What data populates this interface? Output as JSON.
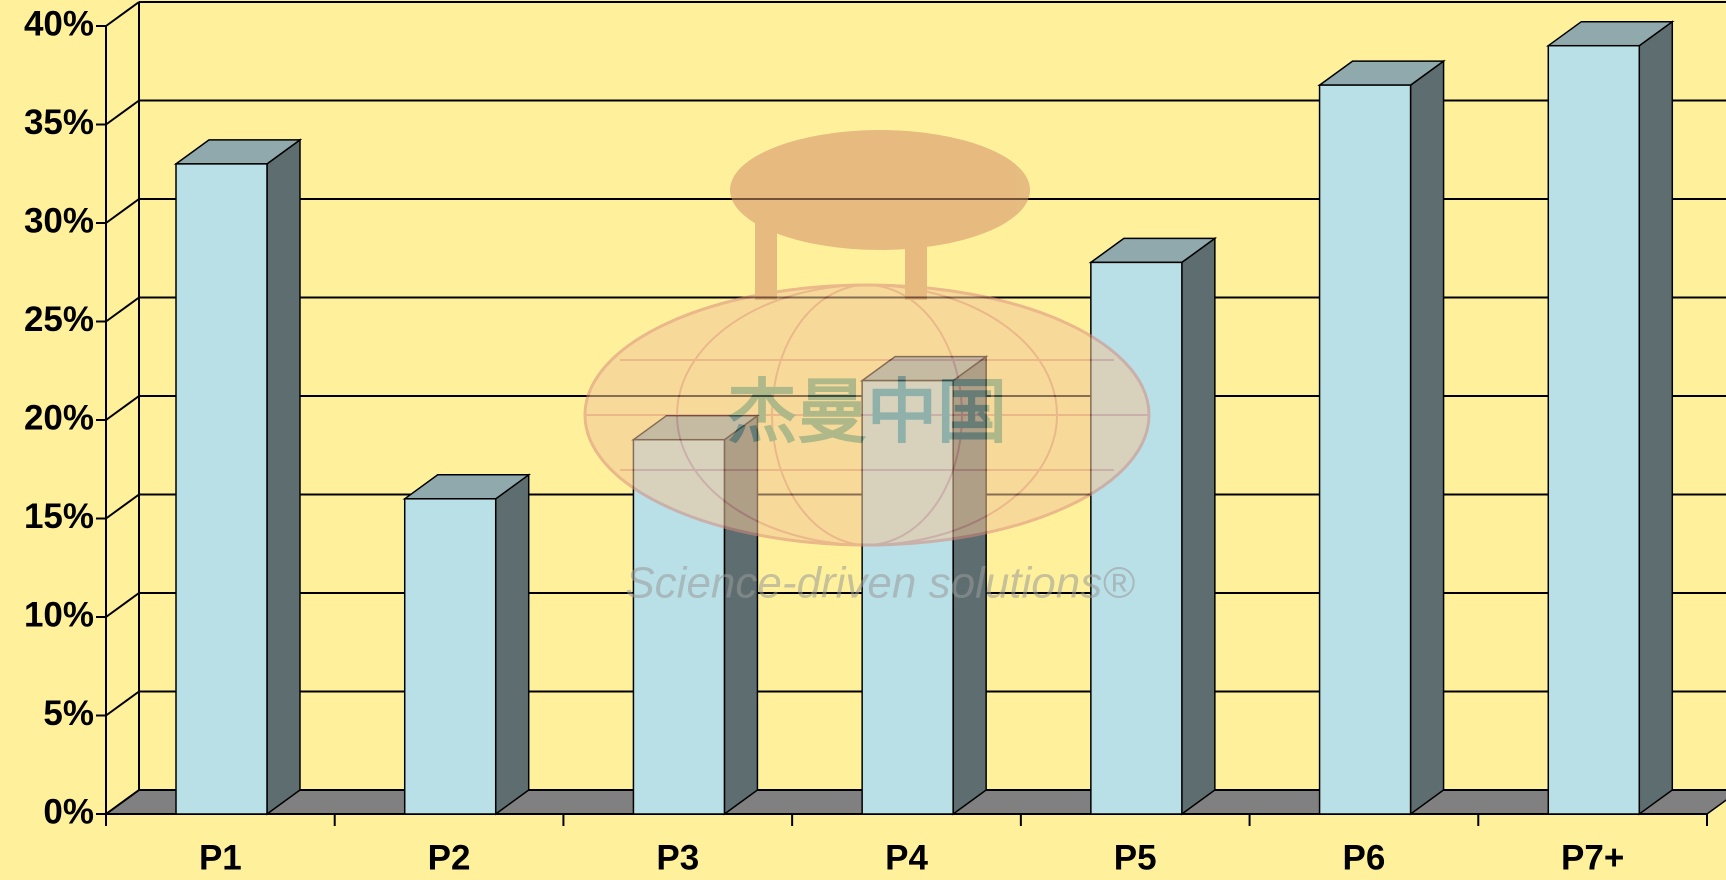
{
  "chart_data": {
    "type": "bar3d",
    "categories": [
      "P1",
      "P2",
      "P3",
      "P4",
      "P5",
      "P6",
      "P7+"
    ],
    "values": [
      33,
      16,
      19,
      22,
      28,
      37,
      39
    ],
    "color": "#b9e0e6",
    "side_color": "#5e6e70",
    "top_color": "#8fa9ad",
    "ylim": [
      0,
      40
    ],
    "yticks": [
      {
        "value": 0,
        "label": "0%"
      },
      {
        "value": 5,
        "label": "5%"
      },
      {
        "value": 10,
        "label": "10%"
      },
      {
        "value": 15,
        "label": "15%"
      },
      {
        "value": 20,
        "label": "20%"
      },
      {
        "value": 25,
        "label": "25%"
      },
      {
        "value": 30,
        "label": "30%"
      },
      {
        "value": 35,
        "label": "35%"
      },
      {
        "value": 40,
        "label": "40%"
      }
    ],
    "grid": true,
    "watermark": {
      "title": "杰曼中国",
      "slogan": "Science-driven solutions®"
    }
  }
}
